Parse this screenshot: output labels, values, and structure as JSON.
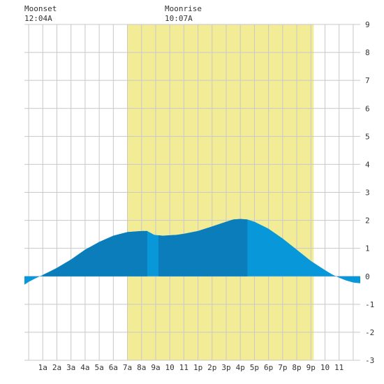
{
  "chart_data": {
    "type": "area",
    "moonset": {
      "label": "Moonset",
      "time": "12:04A"
    },
    "moonrise": {
      "label": "Moonrise",
      "time": "10:07A"
    },
    "daylight": {
      "start_hour": 7.0,
      "end_hour": 20.2
    },
    "xlim": [
      -0.3,
      23.5
    ],
    "ylim": [
      -3,
      9
    ],
    "y_ticks": [
      "9",
      "8",
      "7",
      "6",
      "5",
      "4",
      "3",
      "2",
      "1",
      "0",
      "-1",
      "-2",
      "-3"
    ],
    "x_ticks": [
      "1a",
      "2a",
      "3a",
      "4a",
      "5a",
      "6a",
      "7a",
      "8a",
      "9a",
      "10",
      "11",
      "1p",
      "2p",
      "3p",
      "4p",
      "5p",
      "6p",
      "7p",
      "8p",
      "9p",
      "10",
      "11"
    ],
    "series": [
      {
        "values": [
          [
            -0.3,
            -0.3
          ],
          [
            0.0,
            -0.2
          ],
          [
            0.5,
            -0.07
          ],
          [
            1.0,
            0.05
          ],
          [
            1.5,
            0.17
          ],
          [
            2.0,
            0.3
          ],
          [
            3.0,
            0.6
          ],
          [
            4.0,
            0.95
          ],
          [
            5.0,
            1.23
          ],
          [
            6.0,
            1.45
          ],
          [
            7.0,
            1.58
          ],
          [
            8.0,
            1.62
          ],
          [
            8.4,
            1.62
          ],
          [
            8.9,
            1.48
          ],
          [
            9.5,
            1.45
          ],
          [
            10.5,
            1.48
          ],
          [
            11.0,
            1.52
          ],
          [
            12.0,
            1.62
          ],
          [
            13.0,
            1.78
          ],
          [
            14.0,
            1.95
          ],
          [
            14.5,
            2.03
          ],
          [
            15.0,
            2.05
          ],
          [
            15.5,
            2.03
          ],
          [
            16.0,
            1.95
          ],
          [
            17.0,
            1.7
          ],
          [
            18.0,
            1.35
          ],
          [
            19.0,
            0.95
          ],
          [
            20.0,
            0.55
          ],
          [
            21.0,
            0.22
          ],
          [
            21.5,
            0.07
          ],
          [
            22.0,
            -0.05
          ],
          [
            22.5,
            -0.15
          ],
          [
            23.0,
            -0.22
          ],
          [
            23.5,
            -0.25
          ]
        ]
      }
    ],
    "dark_bands": [
      [
        1.0,
        8.4
      ],
      [
        9.2,
        15.5
      ]
    ],
    "grid": true,
    "colors": {
      "daylight": "#f2ec96",
      "tide_light": "#0897d8",
      "tide_dark": "#0a7dba",
      "grid": "#c8c8c8",
      "axis_text": "#333333"
    }
  }
}
